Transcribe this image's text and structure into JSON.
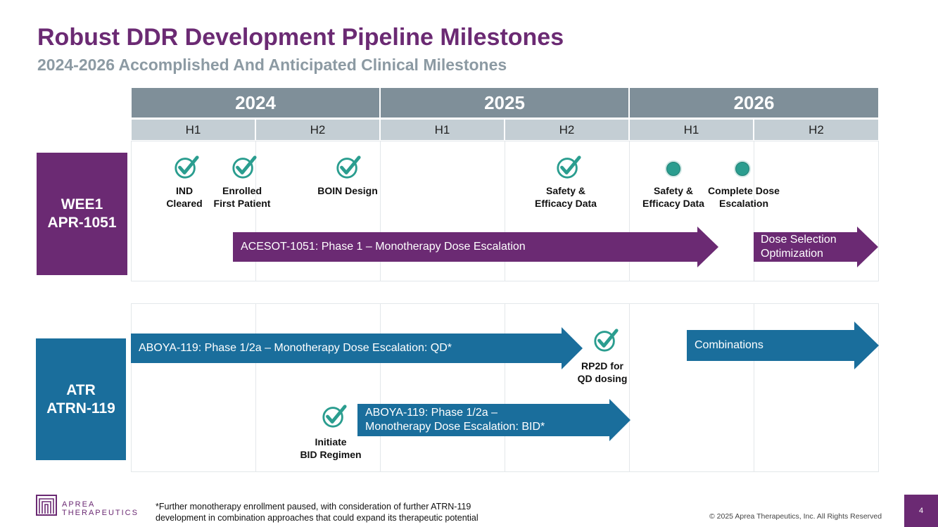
{
  "header": {
    "title": "Robust DDR Development Pipeline Milestones",
    "subtitle": "2024-2026 Accomplished And Anticipated Clinical Milestones"
  },
  "timeline": {
    "years": [
      "2024",
      "2025",
      "2026"
    ],
    "halves": [
      "H1",
      "H2",
      "H1",
      "H2",
      "H1",
      "H2"
    ]
  },
  "wee1": {
    "label_line1": "WEE1",
    "label_line2": "APR-1051",
    "milestones": {
      "ind_line1": "IND",
      "ind_line2": "Cleared",
      "enrolled_line1": "Enrolled",
      "enrolled_line2": "First Patient",
      "boin": "BOIN Design",
      "safety1_line1": "Safety &",
      "safety1_line2": "Efficacy Data",
      "safety2_line1": "Safety &",
      "safety2_line2": "Efficacy Data",
      "complete_line1": "Complete Dose",
      "complete_line2": "Escalation"
    },
    "arrow_main": "ACESOT-1051: Phase 1 – Monotherapy Dose Escalation",
    "arrow_next_line1": "Dose Selection",
    "arrow_next_line2": "Optimization"
  },
  "atr": {
    "label_line1": "ATR",
    "label_line2": "ATRN-119",
    "arrow_qd": "ABOYA-119: Phase 1/2a – Monotherapy Dose Escalation: QD*",
    "arrow_bid_line1": "ABOYA-119: Phase 1/2a –",
    "arrow_bid_line2": "Monotherapy Dose Escalation: BID*",
    "arrow_comb": "Combinations",
    "milestones": {
      "rp2d_line1": "RP2D for",
      "rp2d_line2": "QD dosing",
      "initiate_line1": "Initiate",
      "initiate_line2": "BID Regimen"
    }
  },
  "footer": {
    "logo_line1": "APREA",
    "logo_line2": "THERAPEUTICS",
    "footnote_line1": "*Further monotherapy enrollment paused, with consideration of further ATRN-119",
    "footnote_line2": "development in combination approaches that could expand its therapeutic potential",
    "copyright": "© 2025 Aprea Therapeutics, Inc. All Rights Reserved",
    "page": "4"
  },
  "colors": {
    "purple": "#6b2a73",
    "blue": "#1a6e9c",
    "teal": "#2a9d8f",
    "year_header": "#7f8f99",
    "half_header": "#c4ced4"
  },
  "icons": {
    "achieved": "check-circle-icon",
    "anticipated": "dot-icon"
  }
}
